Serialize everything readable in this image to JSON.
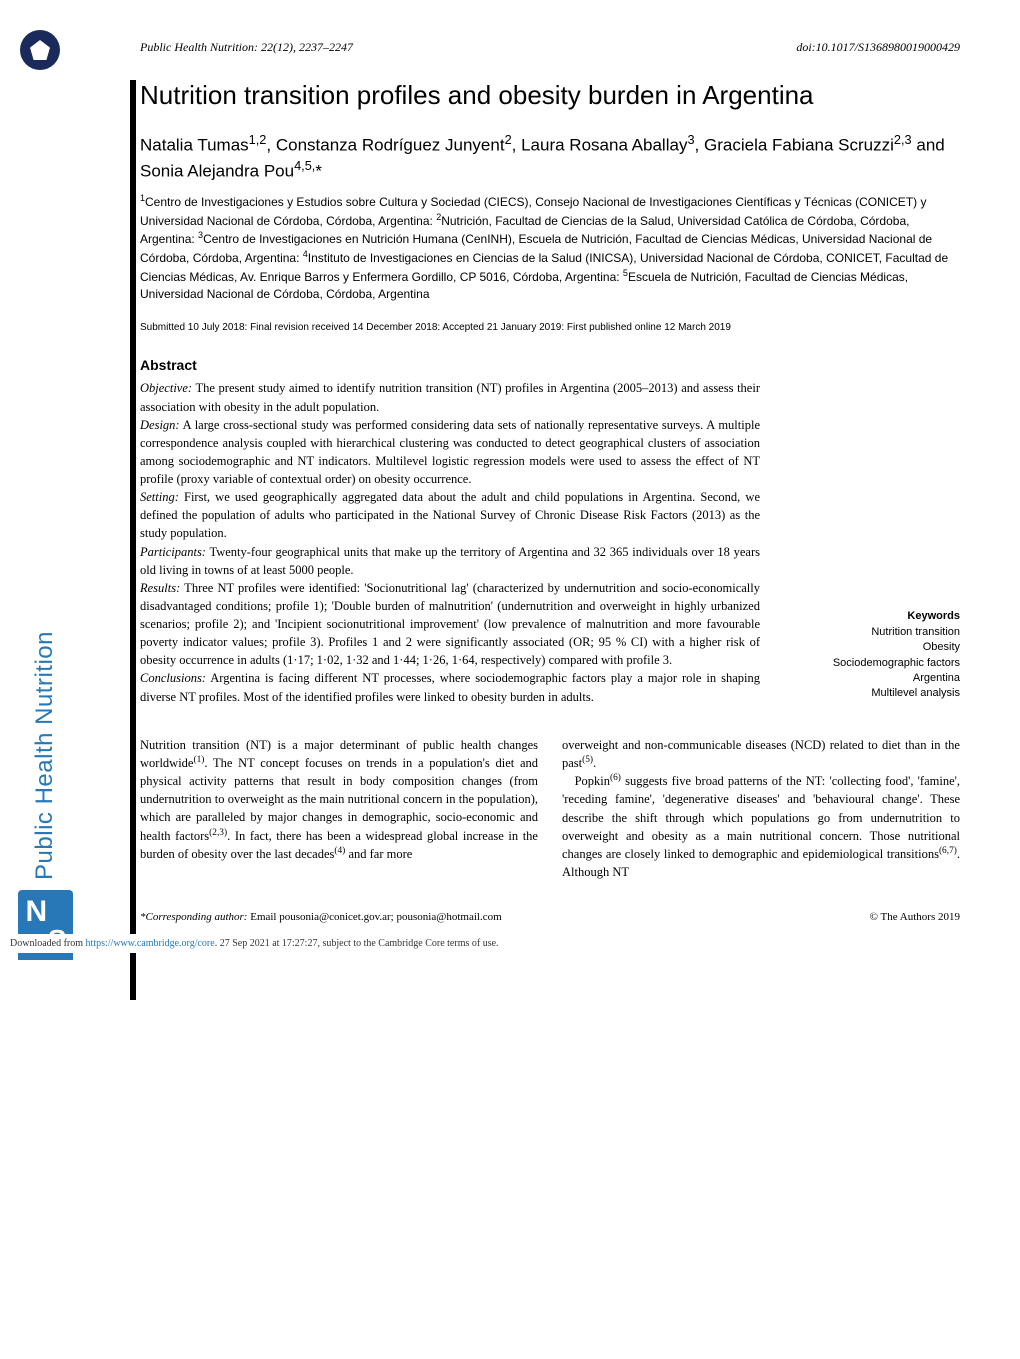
{
  "journal": {
    "header_left": "Public Health Nutrition: 22(12), 2237–2247",
    "header_right": "doi:10.1017/S1368980019000429",
    "sidebar_text": "Public Health Nutrition"
  },
  "article": {
    "title": "Nutrition transition profiles and obesity burden in Argentina",
    "authors_html": "Natalia Tumas<sup>1,2</sup>, Constanza Rodríguez Junyent<sup>2</sup>, Laura Rosana Aballay<sup>3</sup>, Graciela Fabiana Scruzzi<sup>2,3</sup> and Sonia Alejandra Pou<sup>4,5,</sup>*",
    "affiliations_html": "<sup>1</sup>Centro de Investigaciones y Estudios sobre Cultura y Sociedad (CIECS), Consejo Nacional de Investigaciones Científicas y Técnicas (CONICET) y Universidad Nacional de Córdoba, Córdoba, Argentina: <sup>2</sup>Nutrición, Facultad de Ciencias de la Salud, Universidad Católica de Córdoba, Córdoba, Argentina: <sup>3</sup>Centro de Investigaciones en Nutrición Humana (CenINH), Escuela de Nutrición, Facultad de Ciencias Médicas, Universidad Nacional de Córdoba, Córdoba, Argentina: <sup>4</sup>Instituto de Investigaciones en Ciencias de la Salud (INICSA), Universidad Nacional de Córdoba, CONICET, Facultad de Ciencias Médicas, Av. Enrique Barros y Enfermera Gordillo, CP 5016, Córdoba, Argentina: <sup>5</sup>Escuela de Nutrición, Facultad de Ciencias Médicas, Universidad Nacional de Córdoba, Córdoba, Argentina",
    "submitted": "Submitted 10 July 2018: Final revision received 14 December 2018: Accepted 21 January 2019: First published online 12 March 2019"
  },
  "abstract": {
    "heading": "Abstract",
    "objective_label": "Objective:",
    "objective": " The present study aimed to identify nutrition transition (NT) profiles in Argentina (2005–2013) and assess their association with obesity in the adult population.",
    "design_label": "Design:",
    "design": " A large cross-sectional study was performed considering data sets of nationally representative surveys. A multiple correspondence analysis coupled with hierarchical clustering was conducted to detect geographical clusters of association among sociodemographic and NT indicators. Multilevel logistic regression models were used to assess the effect of NT profile (proxy variable of contextual order) on obesity occurrence.",
    "setting_label": "Setting:",
    "setting": " First, we used geographically aggregated data about the adult and child populations in Argentina. Second, we defined the population of adults who participated in the National Survey of Chronic Disease Risk Factors (2013) as the study population.",
    "participants_label": "Participants:",
    "participants": " Twenty-four geographical units that make up the territory of Argentina and 32 365 individuals over 18 years old living in towns of at least 5000 people.",
    "results_label": "Results:",
    "results": " Three NT profiles were identified: 'Socionutritional lag' (characterized by undernutrition and socio-economically disadvantaged conditions; profile 1); 'Double burden of malnutrition' (undernutrition and overweight in highly urbanized scenarios; profile 2); and 'Incipient socionutritional improvement' (low prevalence of malnutrition and more favourable poverty indicator values; profile 3). Profiles 1 and 2 were significantly associated (OR; 95 % CI) with a higher risk of obesity occurrence in adults (1·17; 1·02, 1·32 and 1·44; 1·26, 1·64, respectively) compared with profile 3.",
    "conclusions_label": "Conclusions:",
    "conclusions": " Argentina is facing different NT processes, where sociodemographic factors play a major role in shaping diverse NT profiles. Most of the identified profiles were linked to obesity burden in adults."
  },
  "keywords": {
    "heading": "Keywords",
    "items": [
      "Nutrition transition",
      "Obesity",
      "Sociodemographic factors",
      "Argentina",
      "Multilevel analysis"
    ]
  },
  "intro": {
    "col1": "Nutrition transition (NT) is a major determinant of public health changes worldwide<sup>(1)</sup>. The NT concept focuses on trends in a population's diet and physical activity patterns that result in body composition changes (from undernutrition to overweight as the main nutritional concern in the population), which are paralleled by major changes in demographic, socio-economic and health factors<sup>(2,3)</sup>. In fact, there has been a widespread global increase in the burden of obesity over the last decades<sup>(4)</sup> and far more",
    "col2": "overweight and non-communicable diseases (NCD) related to diet than in the past<sup>(5)</sup>.<br>&nbsp;&nbsp;&nbsp;Popkin<sup>(6)</sup> suggests five broad patterns of the NT: 'collecting food', 'famine', 'receding famine', 'degenerative diseases' and 'behavioural change'. These describe the shift through which populations go from undernutrition to overweight and obesity as a main nutritional concern. Those nutritional changes are closely linked to demographic and epidemiological transitions<sup>(6,7)</sup>. Although NT"
  },
  "footer": {
    "corresponding_label": "*Corresponding author:",
    "corresponding": " Email pousonia@conicet.gov.ar; pousonia@hotmail.com",
    "copyright": "© The Authors 2019"
  },
  "download": {
    "prefix": "Downloaded from ",
    "link": "https://www.cambridge.org/core",
    "suffix": ". 27 Sep 2021 at 17:27:27, subject to the Cambridge Core terms of use."
  }
}
